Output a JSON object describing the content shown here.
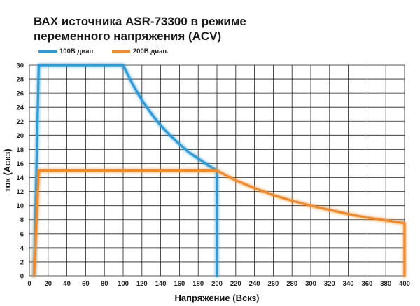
{
  "chart_data": {
    "type": "line",
    "title_lines": [
      "ВАХ источника ASR-73300 в режиме",
      "переменного напряжения (ACV)"
    ],
    "xlabel": "Напряжение (Вскз)",
    "ylabel": "ток (Аскз)",
    "xlim": [
      0,
      400
    ],
    "ylim": [
      0,
      30
    ],
    "x_ticks": [
      0,
      20,
      40,
      60,
      80,
      100,
      120,
      140,
      160,
      180,
      200,
      220,
      240,
      260,
      280,
      300,
      320,
      340,
      360,
      380,
      400
    ],
    "y_ticks": [
      0,
      2,
      4,
      6,
      8,
      10,
      12,
      14,
      16,
      18,
      20,
      22,
      24,
      26,
      28,
      30
    ],
    "grid": true,
    "legend_position": "top-left",
    "series": [
      {
        "name": "100В диап.",
        "color": "#2e9bd6",
        "x": [
          5,
          10,
          100,
          110,
          120,
          130,
          140,
          150,
          160,
          170,
          180,
          190,
          200,
          200
        ],
        "y": [
          0,
          30,
          30,
          27.3,
          25,
          23.1,
          21.4,
          20,
          18.75,
          17.6,
          16.7,
          15.8,
          15,
          0
        ]
      },
      {
        "name": "200В диап.",
        "color": "#f08a2c",
        "x": [
          5,
          10,
          200,
          220,
          240,
          260,
          280,
          300,
          320,
          340,
          360,
          380,
          400,
          400
        ],
        "y": [
          0,
          15,
          15,
          13.6,
          12.5,
          11.5,
          10.7,
          10,
          9.4,
          8.8,
          8.3,
          7.9,
          7.5,
          0
        ]
      }
    ]
  }
}
